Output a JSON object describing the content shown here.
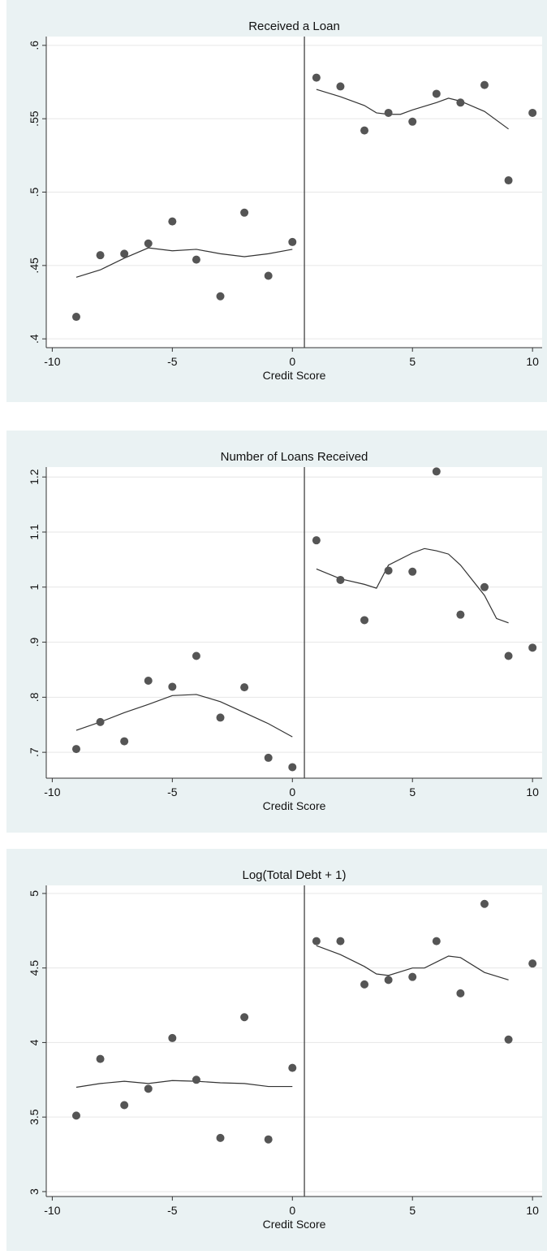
{
  "chart_data": [
    {
      "type": "scatter",
      "title": "Received a Loan",
      "x_label": "Credit Score",
      "xlim": [
        -10.25,
        10.4
      ],
      "ylim": [
        0.394,
        0.606
      ],
      "xticks": [
        -10,
        -5,
        0,
        5,
        10
      ],
      "yticks": [
        {
          "value": 0.4,
          "label": ".4"
        },
        {
          "value": 0.45,
          "label": ".45"
        },
        {
          "value": 0.5,
          "label": ".5"
        },
        {
          "value": 0.55,
          "label": ".55"
        },
        {
          "value": 0.6,
          "label": ".6"
        }
      ],
      "grid": true,
      "vline": 0.5,
      "point_color": "#555555",
      "line_color": "#333333",
      "points": {
        "x": [
          -9,
          -8,
          -7,
          -6,
          -5,
          -4,
          -3,
          -2,
          -1,
          0,
          1,
          2,
          3,
          4,
          5,
          6,
          7,
          8,
          9,
          10
        ],
        "values": [
          0.415,
          0.457,
          0.458,
          0.465,
          0.48,
          0.454,
          0.429,
          0.486,
          0.443,
          0.466,
          0.578,
          0.572,
          0.542,
          0.554,
          0.548,
          0.567,
          0.561,
          0.573,
          0.508,
          0.554
        ]
      },
      "fit": [
        {
          "x": [
            -9,
            -8,
            -7,
            -6,
            -5,
            -4,
            -3,
            -2,
            -1,
            0
          ],
          "values": [
            0.442,
            0.447,
            0.455,
            0.462,
            0.46,
            0.461,
            0.458,
            0.456,
            0.458,
            0.461
          ]
        },
        {
          "x": [
            1,
            2,
            3,
            3.5,
            4,
            4.5,
            5,
            6,
            6.5,
            7,
            8,
            9
          ],
          "values": [
            0.57,
            0.565,
            0.559,
            0.554,
            0.553,
            0.553,
            0.556,
            0.561,
            0.564,
            0.562,
            0.555,
            0.543
          ]
        }
      ]
    },
    {
      "type": "scatter",
      "title": "Number of Loans Received",
      "x_label": "Credit Score",
      "xlim": [
        -10.25,
        10.4
      ],
      "ylim": [
        0.653,
        1.218
      ],
      "xticks": [
        -10,
        -5,
        0,
        5,
        10
      ],
      "yticks": [
        {
          "value": 0.7,
          "label": ".7"
        },
        {
          "value": 0.8,
          "label": ".8"
        },
        {
          "value": 0.9,
          "label": ".9"
        },
        1,
        1.1,
        1.2
      ],
      "grid": true,
      "vline": 0.5,
      "point_color": "#555555",
      "line_color": "#333333",
      "points": {
        "x": [
          -9,
          -8,
          -7,
          -6,
          -5,
          -4,
          -3,
          -2,
          -1,
          0,
          1,
          2,
          3,
          4,
          5,
          6,
          7,
          8,
          9,
          10
        ],
        "values": [
          0.706,
          0.755,
          0.72,
          0.83,
          0.819,
          0.875,
          0.763,
          0.818,
          0.69,
          0.673,
          1.085,
          1.013,
          0.94,
          1.03,
          1.028,
          1.21,
          0.95,
          1.0,
          0.875,
          0.89
        ]
      },
      "fit": [
        {
          "x": [
            -9,
            -8,
            -7,
            -6,
            -5,
            -4,
            -3,
            -2,
            -1,
            0
          ],
          "values": [
            0.74,
            0.755,
            0.772,
            0.787,
            0.803,
            0.805,
            0.792,
            0.772,
            0.752,
            0.728
          ]
        },
        {
          "x": [
            1,
            2,
            3,
            3.5,
            4,
            5,
            5.5,
            6,
            6.5,
            7,
            8,
            8.5,
            9
          ],
          "values": [
            1.033,
            1.015,
            1.005,
            0.998,
            1.04,
            1.062,
            1.07,
            1.066,
            1.06,
            1.04,
            0.985,
            0.943,
            0.935
          ]
        }
      ]
    },
    {
      "type": "scatter",
      "title": "Log(Total Debt + 1)",
      "x_label": "Credit Score",
      "xlim": [
        -10.25,
        10.4
      ],
      "ylim": [
        2.967,
        5.054
      ],
      "xticks": [
        -10,
        -5,
        0,
        5,
        10
      ],
      "yticks": [
        3,
        3.5,
        4,
        4.5,
        5
      ],
      "grid": true,
      "vline": 0.5,
      "point_color": "#555555",
      "line_color": "#333333",
      "points": {
        "x": [
          -9,
          -8,
          -7,
          -6,
          -5,
          -4,
          -3,
          -2,
          -1,
          0,
          1,
          2,
          3,
          4,
          5,
          6,
          7,
          8,
          9,
          10
        ],
        "values": [
          3.51,
          3.89,
          3.58,
          3.69,
          4.03,
          3.75,
          3.36,
          4.17,
          3.35,
          3.83,
          4.68,
          4.68,
          4.39,
          4.42,
          4.44,
          4.68,
          4.33,
          4.93,
          4.02,
          4.53
        ]
      },
      "fit": [
        {
          "x": [
            -9,
            -8,
            -7,
            -6,
            -5,
            -4,
            -3,
            -2,
            -1,
            0
          ],
          "values": [
            3.7,
            3.725,
            3.74,
            3.725,
            3.745,
            3.74,
            3.73,
            3.725,
            3.705,
            3.705
          ]
        },
        {
          "x": [
            1,
            2,
            3,
            3.5,
            4,
            5,
            5.5,
            6,
            6.5,
            7,
            8,
            9
          ],
          "values": [
            4.65,
            4.59,
            4.51,
            4.46,
            4.45,
            4.5,
            4.5,
            4.54,
            4.58,
            4.57,
            4.47,
            4.42
          ]
        }
      ]
    }
  ]
}
